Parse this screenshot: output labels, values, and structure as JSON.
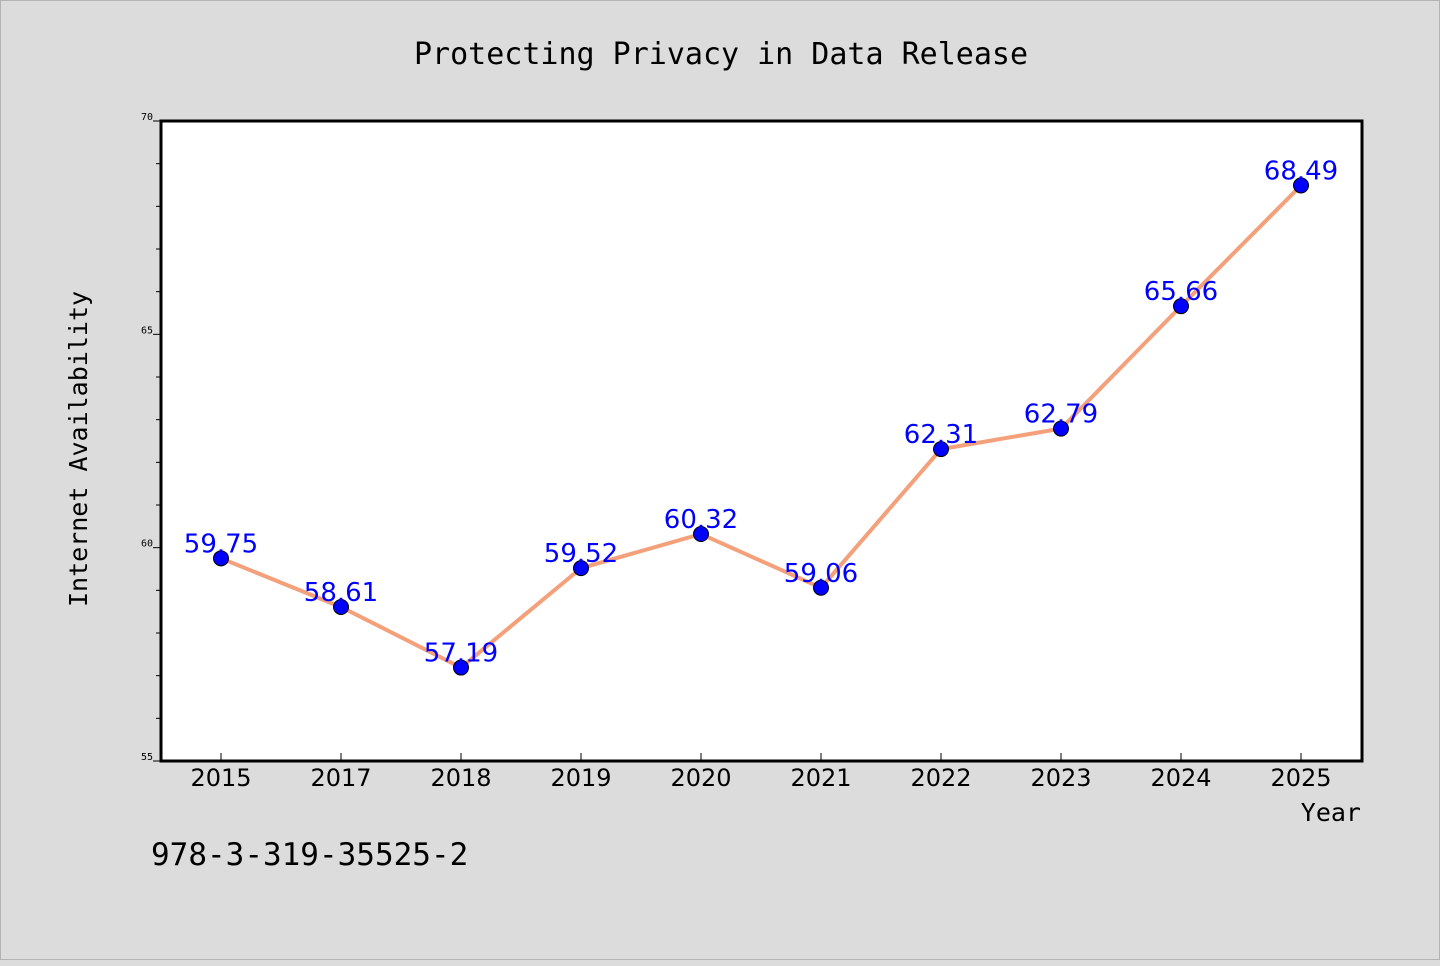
{
  "chart_data": {
    "type": "line",
    "title": "Protecting Privacy in Data Release",
    "xlabel": "Year",
    "ylabel": "Internet Availability",
    "categories": [
      "2015",
      "2017",
      "2018",
      "2019",
      "2020",
      "2021",
      "2022",
      "2023",
      "2024",
      "2025"
    ],
    "series": [
      {
        "values": [
          59.75,
          58.61,
          57.19,
          59.52,
          60.32,
          59.06,
          62.31,
          62.79,
          65.66,
          68.49
        ],
        "line_color": "#f4a07a",
        "marker_color": "#0000ff"
      }
    ],
    "data_labels": [
      "59.75",
      "58.61",
      "57.19",
      "59.52",
      "60.32",
      "59.06",
      "62.31",
      "62.79",
      "65.66",
      "68.49"
    ],
    "label_color": "#0000ff",
    "ylim": [
      55,
      70
    ],
    "y_ticks": [
      "55",
      "60",
      "65",
      "70"
    ],
    "grid": false,
    "legend": "none"
  },
  "annotation": "978-3-319-35525-2",
  "colors": {
    "background": "#dcdcdc",
    "plot_background": "#ffffff",
    "axis": "#000000"
  }
}
